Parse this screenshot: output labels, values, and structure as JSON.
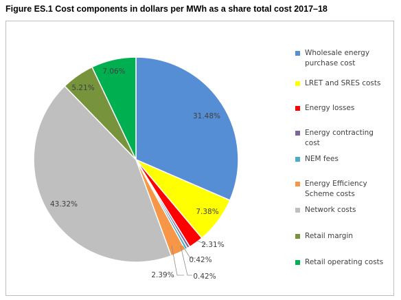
{
  "figure": {
    "title": "Figure ES.1    Cost components in dollars per MWh as a share total cost 2017–18"
  },
  "chart_data": {
    "type": "pie",
    "start_angle_deg": 0,
    "direction": "clockwise",
    "legend_position": "right",
    "slices": [
      {
        "name": "Wholesale energy purchase cost",
        "legend_lines": [
          "Wholesale energy",
          "purchase cost"
        ],
        "value": 31.48,
        "label": "31.48%",
        "color": "#558ED5"
      },
      {
        "name": "LRET and SRES costs",
        "legend_lines": [
          "LRET and SRES costs"
        ],
        "value": 7.38,
        "label": "7.38%",
        "color": "#FFFF00"
      },
      {
        "name": "Energy losses",
        "legend_lines": [
          "Energy losses"
        ],
        "value": 2.31,
        "label": "2.31%",
        "color": "#FF0000"
      },
      {
        "name": "Energy contracting cost",
        "legend_lines": [
          "Energy contracting",
          "cost"
        ],
        "value": 0.42,
        "label": "0.42%",
        "color": "#8064A2"
      },
      {
        "name": "NEM fees",
        "legend_lines": [
          "NEM fees"
        ],
        "value": 0.42,
        "label": "0.42%",
        "color": "#4BACC6"
      },
      {
        "name": "Energy Efficiency Scheme costs",
        "legend_lines": [
          "Energy Efficiency",
          "Scheme costs"
        ],
        "value": 2.39,
        "label": "2.39%",
        "color": "#F79646"
      },
      {
        "name": "Network costs",
        "legend_lines": [
          "Network costs"
        ],
        "value": 43.32,
        "label": "43.32%",
        "color": "#BFBFBF"
      },
      {
        "name": "Retail margin",
        "legend_lines": [
          "Retail margin"
        ],
        "value": 5.21,
        "label": "5.21%",
        "color": "#77933C"
      },
      {
        "name": "Retail operating costs",
        "legend_lines": [
          "Retail operating costs"
        ],
        "value": 7.06,
        "label": "7.06%",
        "color": "#00B050"
      }
    ]
  }
}
